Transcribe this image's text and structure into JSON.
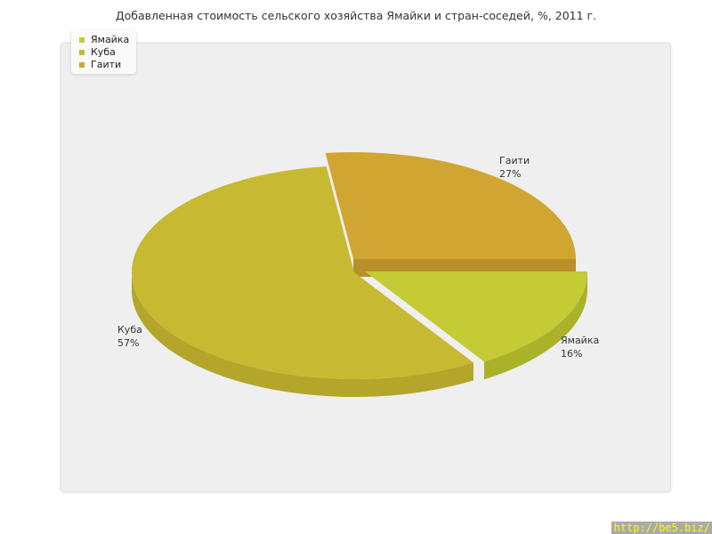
{
  "chart_data": {
    "type": "pie",
    "title": "Добавленная стоимость сельского хозяйства Ямайки и стран-соседей, %, 2011 г.",
    "slices": [
      {
        "name": "Ямайка",
        "value": 16,
        "label": "16%",
        "color": "#c4cb35",
        "side": "#aab22a"
      },
      {
        "name": "Куба",
        "value": 57,
        "label": "57%",
        "color": "#c8b932",
        "side": "#b4a62a"
      },
      {
        "name": "Гаити",
        "value": 27,
        "label": "27%",
        "color": "#d0a532",
        "side": "#b88f28"
      }
    ],
    "legend_placement": "top-left"
  },
  "watermark": "http://be5.biz/"
}
